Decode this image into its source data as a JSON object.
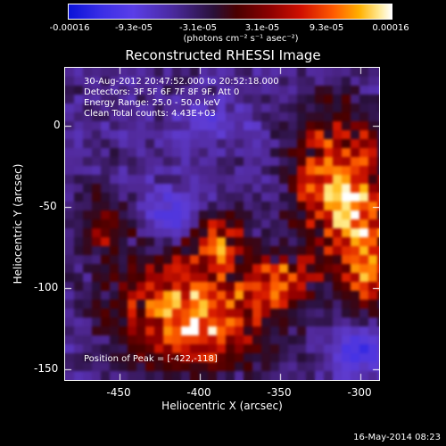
{
  "colorbar": {
    "ticks": [
      "-0.00016",
      "-9.3e-05",
      "-3.1e-05",
      "3.1e-05",
      "9.3e-05",
      "0.00016"
    ],
    "units": "(photons cm⁻² s⁻¹ asec⁻²)"
  },
  "title": "Reconstructed RHESSI Image",
  "info": {
    "time": "30-Aug-2012 20:47:52.000 to 20:52:18.000",
    "detectors": "Detectors: 3F 5F 6F 7F 8F 9F, Att 0",
    "energy": "Energy Range: 25.0 - 50.0 keV",
    "clean": "Clean     Total counts: 4.43E+03",
    "peak": "Position of Peak = [-422,-118]"
  },
  "axes": {
    "xlabel": "Heliocentric X (arcsec)",
    "ylabel": "Heliocentric Y (arcsec)",
    "xticks": [
      "-450",
      "-400",
      "-350",
      "-300"
    ],
    "yticks": [
      "0",
      "-50",
      "-100",
      "-150"
    ]
  },
  "footer": {
    "timestamp": "16-May-2014 08:23"
  },
  "chart_data": {
    "type": "heatmap",
    "title": "Reconstructed RHESSI Image",
    "xlabel": "Heliocentric X (arcsec)",
    "ylabel": "Heliocentric Y (arcsec)",
    "xlim": [
      -485,
      -290
    ],
    "ylim": [
      -155,
      40
    ],
    "peak": [
      -422,
      -118
    ],
    "colorbar_range": [
      -0.00016,
      0.00016
    ]
  }
}
